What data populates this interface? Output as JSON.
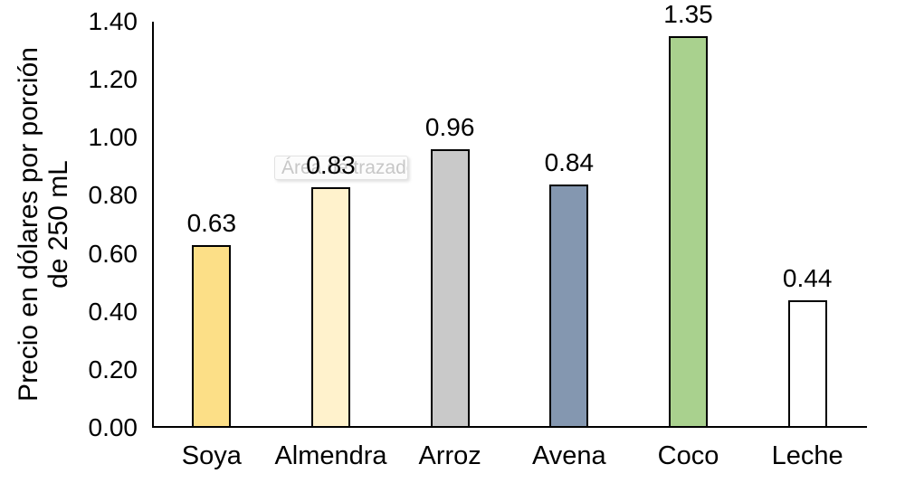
{
  "chart_data": {
    "type": "bar",
    "title": "",
    "categories": [
      "Soya",
      "Almendra",
      "Arroz",
      "Avena",
      "Coco",
      "Leche"
    ],
    "values": [
      0.63,
      0.83,
      0.96,
      0.84,
      1.35,
      0.44
    ],
    "value_labels": [
      "0.63",
      "0.83",
      "0.96",
      "0.84",
      "1.35",
      "0.44"
    ],
    "xlabel": "",
    "ylabel": "Precio en dólares por porción\nde 250 mL",
    "ylim": [
      0,
      1.4
    ],
    "yticks": [
      "0.00",
      "0.20",
      "0.40",
      "0.60",
      "0.80",
      "1.00",
      "1.20",
      "1.40"
    ],
    "grid": false,
    "legend": false,
    "bar_colors": [
      "#FCDF87",
      "#FFF2CC",
      "#C9C9C9",
      "#8497B0",
      "#A9D18E",
      "#FFFFFF"
    ],
    "bar_border_color": "#000000",
    "axis_color": "#000000"
  },
  "tooltip": {
    "text": "Área de trazado"
  }
}
